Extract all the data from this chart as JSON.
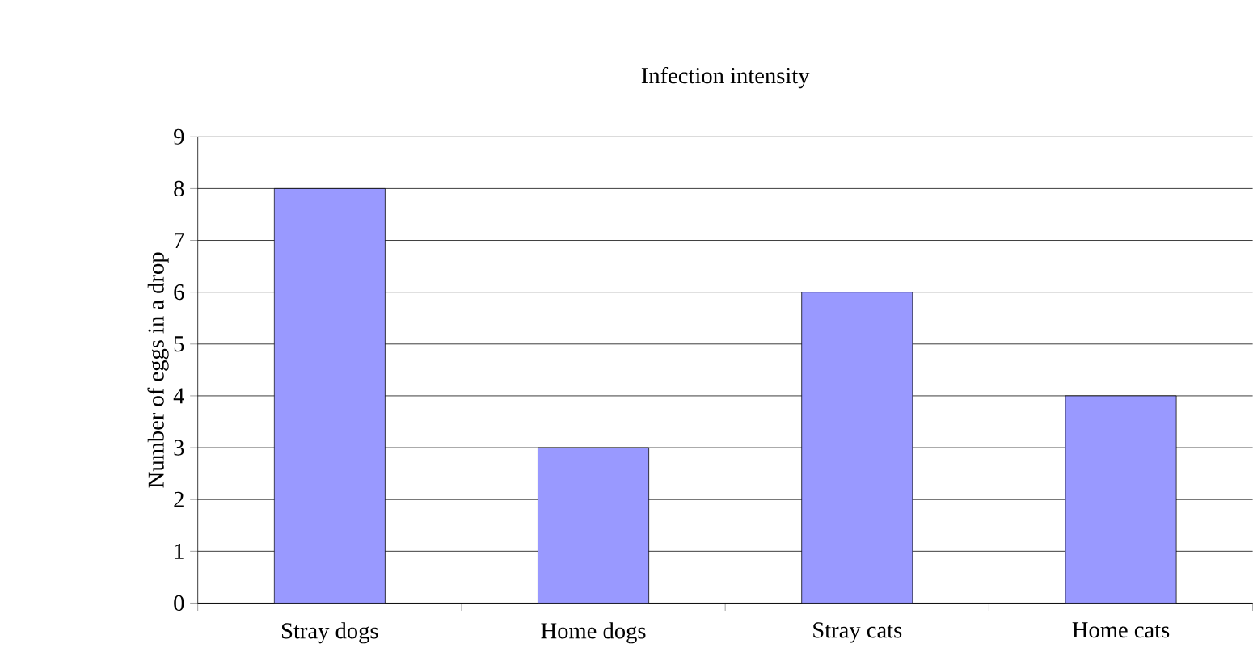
{
  "chart_data": {
    "type": "bar",
    "title": "Infection intensity",
    "ylabel": "Number of eggs in a drop",
    "categories": [
      "Stray dogs",
      "Home dogs",
      "Stray cats",
      "Home cats"
    ],
    "values": [
      8,
      3,
      6,
      4
    ],
    "color": "#9999ff",
    "ylim": [
      0,
      9
    ],
    "yticks": [
      0,
      1,
      2,
      3,
      4,
      5,
      6,
      7,
      8,
      9
    ],
    "grid": "y"
  }
}
